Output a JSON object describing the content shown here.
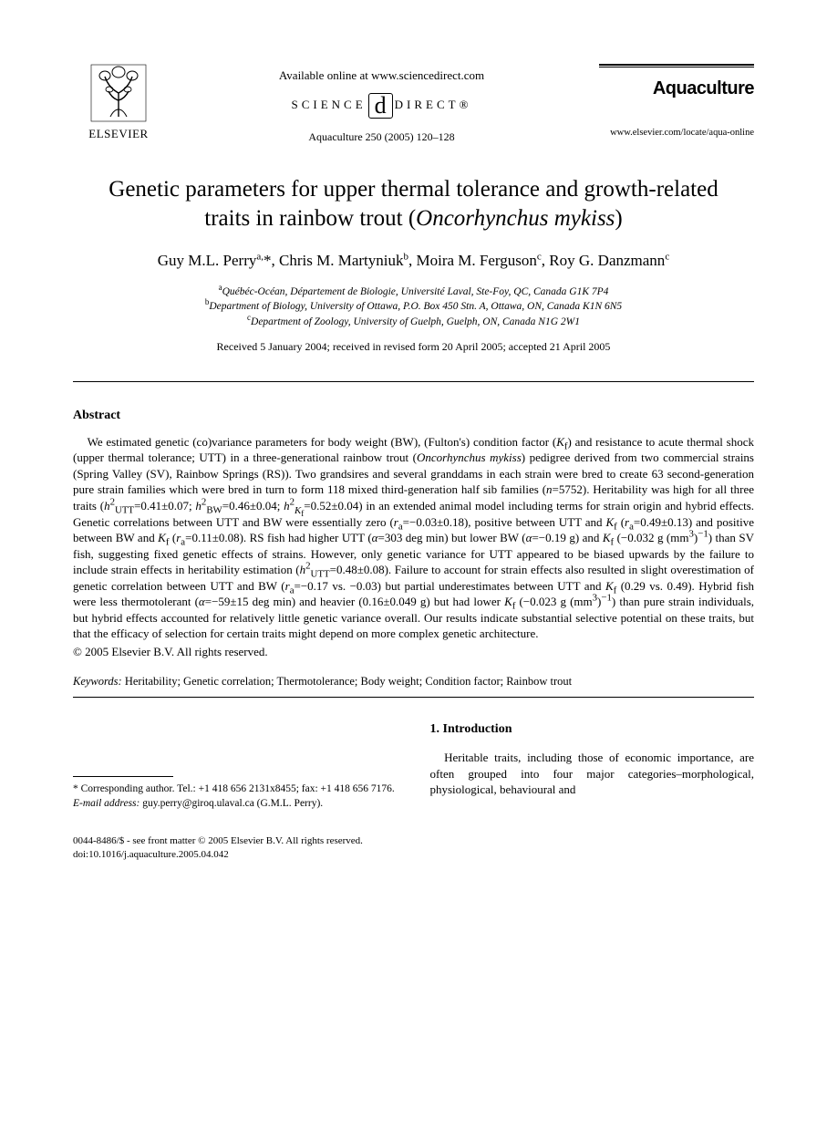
{
  "header": {
    "publisher_name": "ELSEVIER",
    "available_online": "Available online at www.sciencedirect.com",
    "sd_left": "SCIENCE",
    "sd_right": "DIRECT®",
    "citation": "Aquaculture 250 (2005) 120–128",
    "journal_name": "Aquaculture",
    "journal_url": "www.elsevier.com/locate/aqua-online"
  },
  "title_line1": "Genetic parameters for upper thermal tolerance and growth-related",
  "title_line2_pre": "traits in rainbow trout (",
  "title_line2_species": "Oncorhynchus mykiss",
  "title_line2_post": ")",
  "authors_html": "Guy M.L. Perry<sup>a,</sup>*, Chris M. Martyniuk<sup>b</sup>, Moira M. Ferguson<sup>c</sup>, Roy G. Danzmann<sup>c</sup>",
  "affiliations": {
    "a": "Québéc-Océan, Département de Biologie, Université Laval, Ste-Foy, QC, Canada G1K 7P4",
    "b": "Department of Biology, University of Ottawa, P.O. Box 450 Stn. A, Ottawa, ON, Canada K1N 6N5",
    "c": "Department of Zoology, University of Guelph, Guelph, ON, Canada N1G 2W1"
  },
  "dates": "Received 5 January 2004; received in revised form 20 April 2005; accepted 21 April 2005",
  "abstract_heading": "Abstract",
  "abstract_body": "We estimated genetic (co)variance parameters for body weight (BW), (Fulton's) condition factor (K_f) and resistance to acute thermal shock (upper thermal tolerance; UTT) in a three-generational rainbow trout (Oncorhynchus mykiss) pedigree derived from two commercial strains (Spring Valley (SV), Rainbow Springs (RS)). Two grandsires and several granddams in each strain were bred to create 63 second-generation pure strain families which were bred in turn to form 118 mixed third-generation half sib families (n=5752). Heritability was high for all three traits (h²_UTT=0.41±0.07; h²_BW=0.46±0.04; h²_Kf=0.52±0.04) in an extended animal model including terms for strain origin and hybrid effects. Genetic correlations between UTT and BW were essentially zero (r_a=−0.03±0.18), positive between UTT and K_f (r_a=0.49±0.13) and positive between BW and K_f (r_a=0.11±0.08). RS fish had higher UTT (α=303 deg min) but lower BW (α=−0.19 g) and K_f (−0.032 g (mm³)⁻¹) than SV fish, suggesting fixed genetic effects of strains. However, only genetic variance for UTT appeared to be biased upwards by the failure to include strain effects in heritability estimation (h²_UTT=0.48±0.08). Failure to account for strain effects also resulted in slight overestimation of genetic correlation between UTT and BW (r_a=−0.17 vs. −0.03) but partial underestimates between UTT and K_f (0.29 vs. 0.49). Hybrid fish were less thermotolerant (α=−59±15 deg min) and heavier (0.16±0.049 g) but had lower K_f (−0.023 g (mm³)⁻¹) than pure strain individuals, but hybrid effects accounted for relatively little genetic variance overall. Our results indicate substantial selective potential on these traits, but that the efficacy of selection for certain traits might depend on more complex genetic architecture.",
  "copyright": "© 2005 Elsevier B.V. All rights reserved.",
  "keywords_label": "Keywords:",
  "keywords_value": " Heritability; Genetic correlation; Thermotolerance; Body weight; Condition factor; Rainbow trout",
  "footnote_corresponding": "* Corresponding author. Tel.: +1 418 656 2131x8455; fax: +1 418 656 7176.",
  "footnote_email_label": "E-mail address:",
  "footnote_email_value": " guy.perry@giroq.ulaval.ca (G.M.L. Perry).",
  "section1_heading": "1. Introduction",
  "section1_body": "Heritable traits, including those of economic importance, are often grouped into four major categories–morphological, physiological, behavioural and",
  "footer_line1": "0044-8486/$ - see front matter © 2005 Elsevier B.V. All rights reserved.",
  "footer_line2": "doi:10.1016/j.aquaculture.2005.04.042",
  "colors": {
    "text": "#000000",
    "background": "#ffffff",
    "logo_orange": "#e67817"
  }
}
